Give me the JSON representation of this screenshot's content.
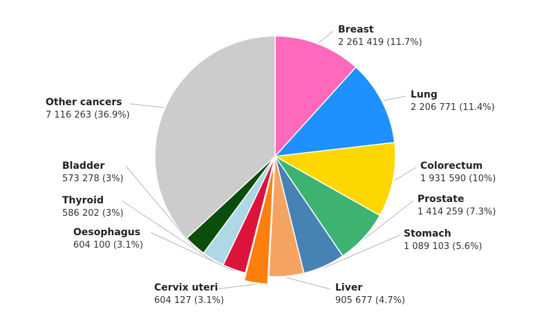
{
  "chart_data": {
    "type": "pie",
    "title": "",
    "start_angle_deg": 0,
    "direction": "clockwise",
    "slices": [
      {
        "label": "Breast",
        "value": 2261419,
        "value_text": "2 261 419 (11.7%)",
        "percent": 11.7,
        "color": "#ff69bb"
      },
      {
        "label": "Lung",
        "value": 2206771,
        "value_text": "2 206 771 (11.4%)",
        "percent": 11.4,
        "color": "#1e90ff"
      },
      {
        "label": "Colorectum",
        "value": 1931590,
        "value_text": "1 931 590 (10%)",
        "percent": 10,
        "color": "#ffd700"
      },
      {
        "label": "Prostate",
        "value": 1414259,
        "value_text": "1 414 259 (7.3%)",
        "percent": 7.3,
        "color": "#3cb371"
      },
      {
        "label": "Stomach",
        "value": 1089103,
        "value_text": "1 089 103 (5.6%)",
        "percent": 5.6,
        "color": "#4682b4"
      },
      {
        "label": "Liver",
        "value": 905677,
        "value_text": "905 677 (4.7%)",
        "percent": 4.7,
        "color": "#f4a460"
      },
      {
        "label": "Cervix uteri",
        "value": 604127,
        "value_text": "604 127 (3.1%)",
        "percent": 3.1,
        "color": "#ff7f0e",
        "exploded": true
      },
      {
        "label": "Oesophagus",
        "value": 604100,
        "value_text": "604 100 (3.1%)",
        "percent": 3.1,
        "color": "#dc143c"
      },
      {
        "label": "Thyroid",
        "value": 586202,
        "value_text": "586 202 (3%)",
        "percent": 3,
        "color": "#add8e6"
      },
      {
        "label": "Bladder",
        "value": 573278,
        "value_text": "573 278 (3%)",
        "percent": 3,
        "color": "#0b4d0b"
      },
      {
        "label": "Other cancers",
        "value": 7116263,
        "value_text": "7 116 263 (36.9%)",
        "percent": 36.9,
        "color": "#cccccc"
      }
    ]
  }
}
